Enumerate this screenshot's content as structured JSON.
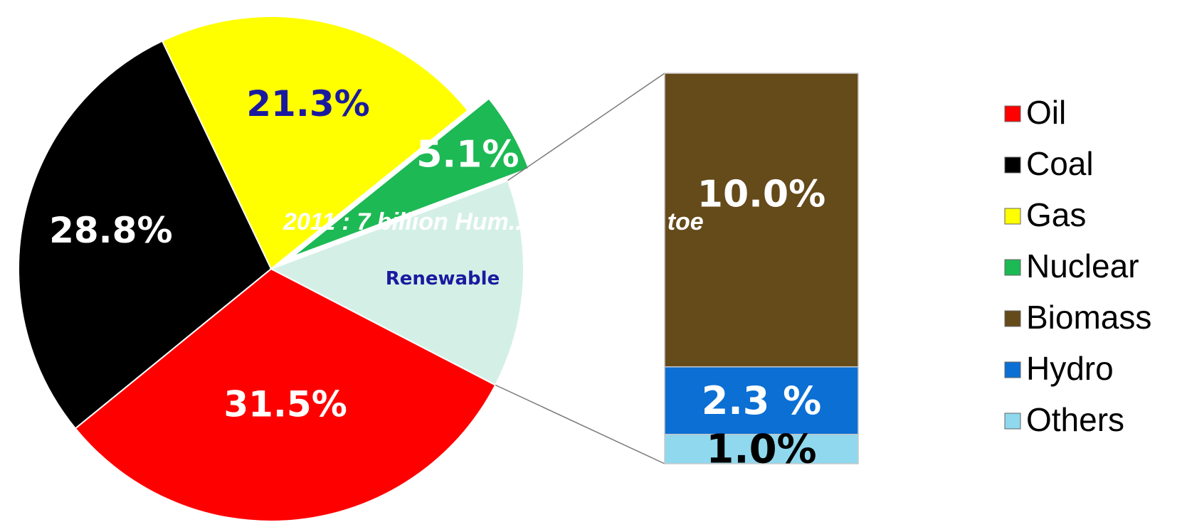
{
  "chart_data": {
    "type": "pie",
    "title": "2011 : 7 billion Hum... 13.1 billion toe",
    "title_note": "Title text partially occluded in the original; visible fragments reproduced.",
    "unit": "%",
    "pie": {
      "slices": [
        {
          "name": "Oil",
          "value": 31.5,
          "label": "31.5%",
          "color": "#ff0000",
          "label_color": "#ffffff"
        },
        {
          "name": "Coal",
          "value": 28.8,
          "label": "28.8%",
          "color": "#000000",
          "label_color": "#ffffff"
        },
        {
          "name": "Gas",
          "value": 21.3,
          "label": "21.3%",
          "color": "#ffff00",
          "label_color": "#1a1aa0"
        },
        {
          "name": "Nuclear",
          "value": 5.1,
          "label": "5.1%",
          "color": "#1db954",
          "label_color": "#ffffff",
          "exploded": true
        },
        {
          "name": "Renewable",
          "value": 13.3,
          "label": "Renewable",
          "color": "#d4f0e6",
          "label_color": "#1a1aa0",
          "breakdown": true
        }
      ]
    },
    "breakdown_bar": {
      "of": "Renewable",
      "segments": [
        {
          "name": "Biomass",
          "value": 10.0,
          "label": "10.0%",
          "color": "#654a1a",
          "label_color": "#ffffff"
        },
        {
          "name": "Hydro",
          "value": 2.3,
          "label": "2.3 %",
          "color": "#0b6fd4",
          "label_color": "#ffffff"
        },
        {
          "name": "Others",
          "value": 1.0,
          "label": "1.0%",
          "color": "#8fd8ee",
          "label_color": "#000000"
        }
      ]
    },
    "legend": {
      "position": "right",
      "entries": [
        {
          "label": "Oil",
          "color": "#ff0000"
        },
        {
          "label": "Coal",
          "color": "#000000"
        },
        {
          "label": "Gas",
          "color": "#ffff00"
        },
        {
          "label": "Nuclear",
          "color": "#1db954"
        },
        {
          "label": "Biomass",
          "color": "#654a1a"
        },
        {
          "label": "Hydro",
          "color": "#0b6fd4"
        },
        {
          "label": "Others",
          "color": "#8fd8ee"
        }
      ]
    }
  }
}
